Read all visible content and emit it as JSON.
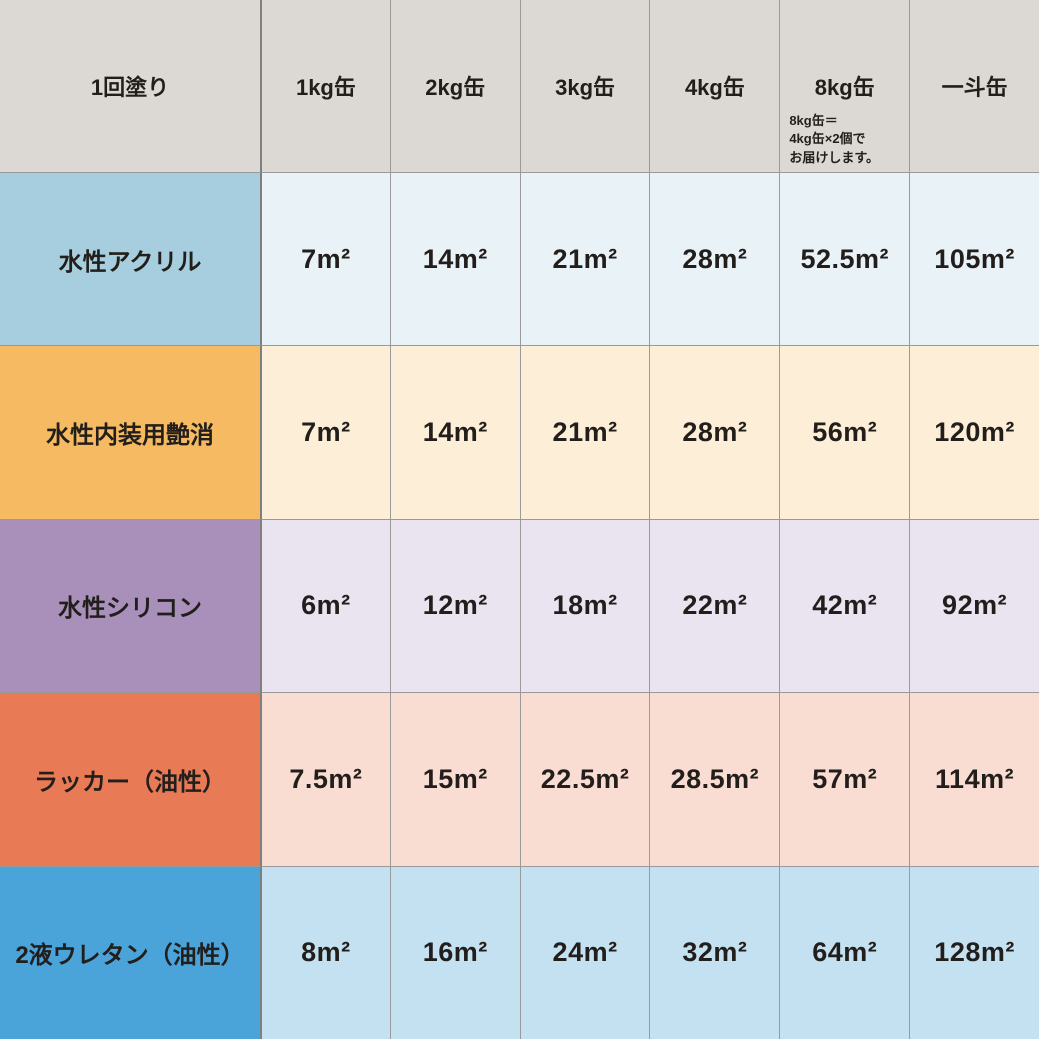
{
  "chart_data": {
    "type": "table",
    "corner_label": "1回塗り",
    "unit": "m²",
    "columns": [
      "1kg缶",
      "2kg缶",
      "3kg缶",
      "4kg缶",
      "8kg缶",
      "一斗缶"
    ],
    "note_column": "8kg缶",
    "note_lines": [
      "8kg缶＝",
      "4kg缶×2個で",
      "お届けします。"
    ],
    "rows": [
      {
        "label": "水性アクリル",
        "values_m2": [
          7,
          14,
          21,
          28,
          52.5,
          105
        ],
        "display": [
          "7m²",
          "14m²",
          "21m²",
          "28m²",
          "52.5m²",
          "105m²"
        ]
      },
      {
        "label": "水性内装用艶消",
        "values_m2": [
          7,
          14,
          21,
          28,
          56,
          120
        ],
        "display": [
          "7m²",
          "14m²",
          "21m²",
          "28m²",
          "56m²",
          "120m²"
        ]
      },
      {
        "label": "水性シリコン",
        "values_m2": [
          6,
          12,
          18,
          22,
          42,
          92
        ],
        "display": [
          "6m²",
          "12m²",
          "18m²",
          "22m²",
          "42m²",
          "92m²"
        ]
      },
      {
        "label": "ラッカー（油性）",
        "values_m2": [
          7.5,
          15,
          22.5,
          28.5,
          57,
          114
        ],
        "display": [
          "7.5m²",
          "15m²",
          "22.5m²",
          "28.5m²",
          "57m²",
          "114m²"
        ]
      },
      {
        "label": "2液ウレタン（油性）",
        "values_m2": [
          8,
          16,
          24,
          32,
          64,
          128
        ],
        "display": [
          "8m²",
          "16m²",
          "24m²",
          "32m²",
          "64m²",
          "128m²"
        ]
      }
    ]
  },
  "colors": {
    "header_bg": "#dcd9d4",
    "grid_line": "#999999",
    "divider": "#7f7f7f",
    "text": "#221e1b",
    "rows": [
      {
        "label_bg": "#a6cede",
        "cell_bg": "#e9f2f7"
      },
      {
        "label_bg": "#f6ba62",
        "cell_bg": "#fdeed7"
      },
      {
        "label_bg": "#a890bb",
        "cell_bg": "#eae3f0"
      },
      {
        "label_bg": "#e87a56",
        "cell_bg": "#f9dcd2"
      },
      {
        "label_bg": "#4aa3d9",
        "cell_bg": "#c3e1f0"
      }
    ]
  }
}
